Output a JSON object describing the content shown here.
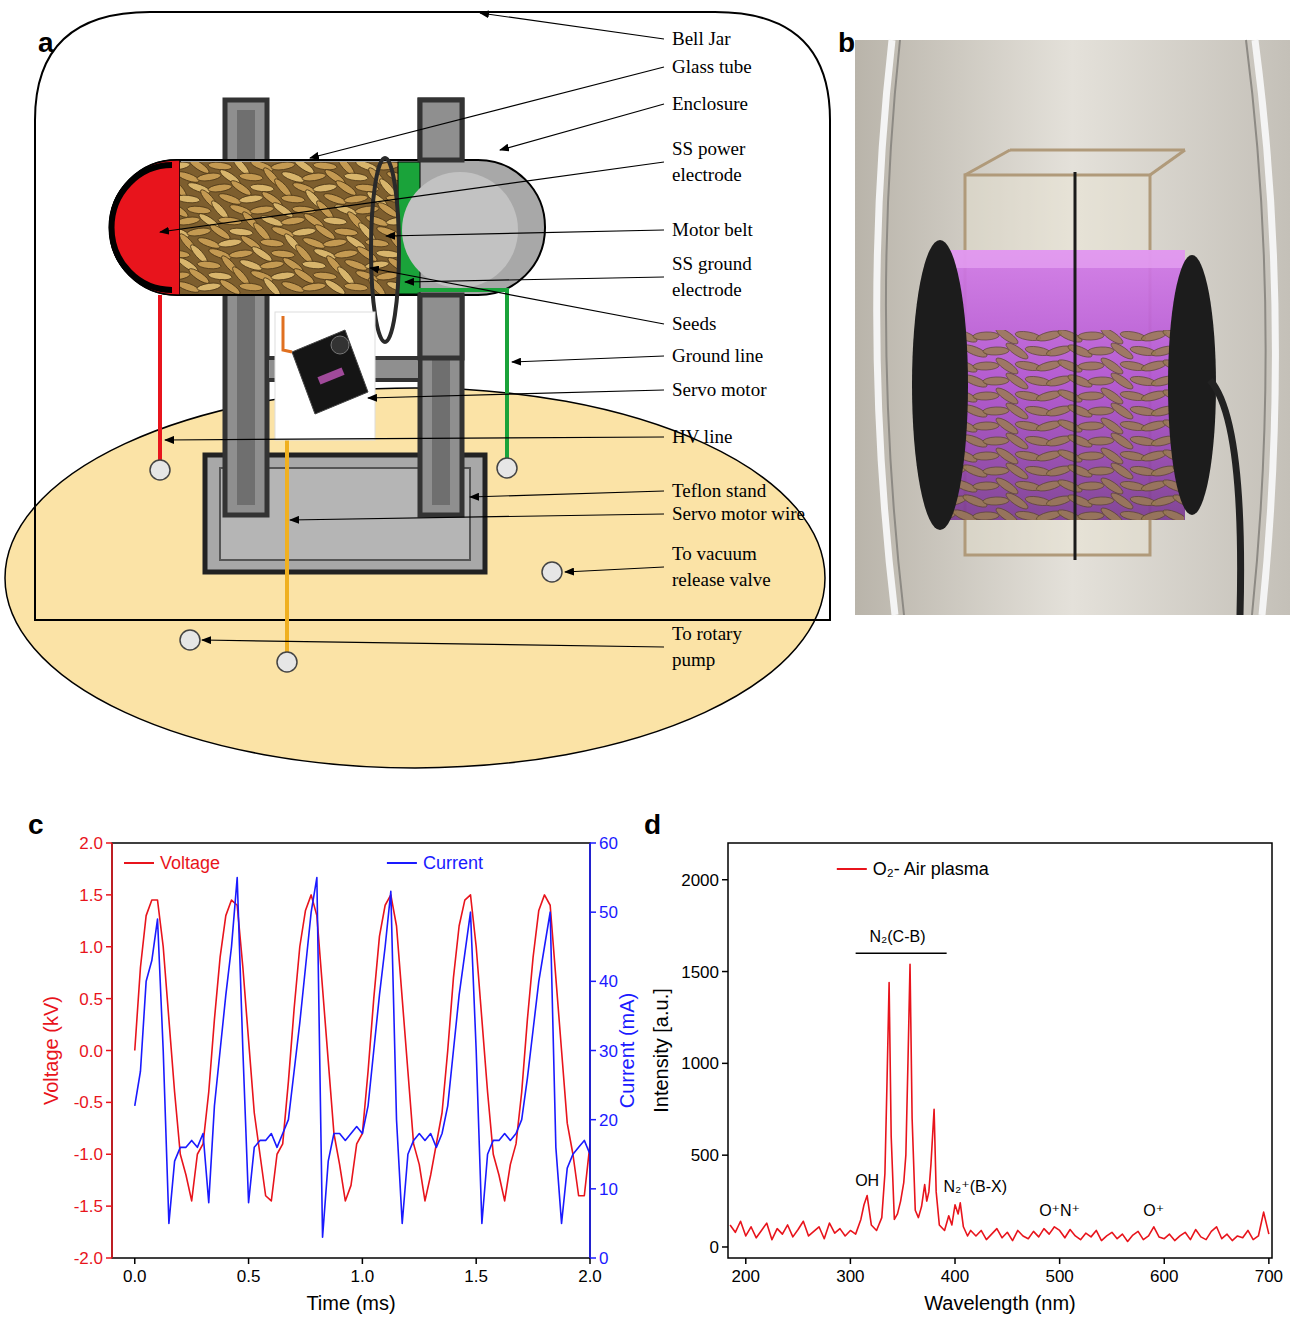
{
  "panel_labels": [
    "a",
    "b",
    "c",
    "d"
  ],
  "diagram": {
    "labels": [
      {
        "lines": [
          "Bell Jar"
        ]
      },
      {
        "lines": [
          "Glass tube"
        ]
      },
      {
        "lines": [
          "Enclosure"
        ]
      },
      {
        "lines": [
          "SS power",
          "electrode"
        ]
      },
      {
        "lines": [
          "Motor belt"
        ]
      },
      {
        "lines": [
          "SS ground",
          "electrode"
        ]
      },
      {
        "lines": [
          "Seeds"
        ]
      },
      {
        "lines": [
          "Ground line"
        ]
      },
      {
        "lines": [
          "Servo motor"
        ]
      },
      {
        "lines": [
          "HV line"
        ]
      },
      {
        "lines": [
          "Teflon stand"
        ]
      },
      {
        "lines": [
          "Servo motor wire"
        ]
      },
      {
        "lines": [
          "To vacuum",
          "release valve"
        ]
      },
      {
        "lines": [
          "To rotary",
          "pump"
        ]
      }
    ]
  },
  "chart_data": [
    {
      "type": "line",
      "x_label": "Time (ms)",
      "y_label": "Voltage (kV)",
      "y2_label": "Current (mA)",
      "x": [
        0,
        0.025,
        0.05,
        0.075,
        0.1,
        0.125,
        0.15,
        0.175,
        0.2,
        0.225,
        0.25,
        0.275,
        0.3,
        0.325,
        0.35,
        0.375,
        0.4,
        0.425,
        0.45,
        0.475,
        0.5,
        0.525,
        0.55,
        0.575,
        0.6,
        0.625,
        0.65,
        0.675,
        0.7,
        0.725,
        0.75,
        0.775,
        0.8,
        0.825,
        0.85,
        0.875,
        0.9,
        0.925,
        0.95,
        0.975,
        1,
        1.025,
        1.05,
        1.075,
        1.1,
        1.125,
        1.15,
        1.175,
        1.2,
        1.225,
        1.25,
        1.275,
        1.3,
        1.325,
        1.35,
        1.375,
        1.4,
        1.425,
        1.45,
        1.475,
        1.5,
        1.525,
        1.55,
        1.575,
        1.6,
        1.625,
        1.65,
        1.675,
        1.7,
        1.725,
        1.75,
        1.775,
        1.8,
        1.825,
        1.85,
        1.875,
        1.9,
        1.925,
        1.95,
        1.975,
        2
      ],
      "series": [
        {
          "name": "Voltage",
          "color": "#e8141c",
          "values": [
            0,
            0.8,
            1.3,
            1.45,
            1.45,
            1.0,
            0.3,
            -0.4,
            -1.0,
            -1.2,
            -1.45,
            -1.0,
            -0.9,
            -0.4,
            0.3,
            0.9,
            1.3,
            1.45,
            1.4,
            0.8,
            0.1,
            -0.6,
            -1.0,
            -1.4,
            -1.45,
            -1.0,
            -0.9,
            -0.3,
            0.4,
            1.0,
            1.35,
            1.5,
            1.3,
            0.6,
            -0.1,
            -0.8,
            -1.1,
            -1.45,
            -1.3,
            -0.9,
            -0.8,
            -0.2,
            0.5,
            1.1,
            1.4,
            1.5,
            1.2,
            0.5,
            -0.2,
            -0.9,
            -1.1,
            -1.45,
            -1.2,
            -0.9,
            -0.6,
            0.0,
            0.7,
            1.2,
            1.45,
            1.5,
            1.0,
            0.3,
            -0.4,
            -1.0,
            -1.2,
            -1.45,
            -1.1,
            -0.9,
            -0.4,
            0.3,
            0.9,
            1.35,
            1.5,
            1.4,
            0.7,
            0.0,
            -0.7,
            -1.0,
            -1.4,
            -1.4,
            -0.9
          ]
        },
        {
          "name": "Current",
          "color": "#1a1aff",
          "axis": "y2",
          "values": [
            22,
            27,
            40,
            43,
            49,
            30,
            5,
            14,
            16,
            16,
            17,
            16,
            18,
            8,
            22,
            30,
            38,
            45,
            55,
            30,
            8,
            16,
            17,
            17,
            18,
            16,
            18,
            20,
            27,
            34,
            42,
            50,
            55,
            3,
            14,
            18,
            18,
            17,
            18,
            19,
            18,
            22,
            30,
            38,
            45,
            53,
            20,
            5,
            15,
            17,
            18,
            17,
            18,
            16,
            18,
            22,
            30,
            38,
            44,
            50,
            30,
            5,
            15,
            17,
            17,
            18,
            17,
            18,
            20,
            26,
            33,
            40,
            45,
            50,
            16,
            5,
            13,
            15,
            16,
            17,
            15
          ]
        }
      ],
      "xlim": [
        -0.1,
        2.0
      ],
      "xticks": [
        {
          "value": 0,
          "label": "0.0"
        },
        {
          "value": 0.5,
          "label": "0.5"
        },
        {
          "value": 1,
          "label": "1.0"
        },
        {
          "value": 1.5,
          "label": "1.5"
        },
        {
          "value": 2,
          "label": "2.0"
        }
      ],
      "ylim": [
        -2,
        2
      ],
      "yticks": [
        {
          "value": -2,
          "label": "-2.0"
        },
        {
          "value": -1.5,
          "label": "-1.5"
        },
        {
          "value": -1,
          "label": "-1.0"
        },
        {
          "value": -0.5,
          "label": "-0.5"
        },
        {
          "value": 0,
          "label": "0.0"
        },
        {
          "value": 0.5,
          "label": "0.5"
        },
        {
          "value": 1,
          "label": "1.0"
        },
        {
          "value": 1.5,
          "label": "1.5"
        },
        {
          "value": 2,
          "label": "2.0"
        }
      ],
      "y2lim": [
        0,
        60
      ],
      "y2ticks": [
        0,
        10,
        20,
        30,
        40,
        50,
        60
      ],
      "legend": "top",
      "grid": false
    },
    {
      "type": "line",
      "x_label": "Wavelength (nm)",
      "y_label": "Intensity [a.u.]",
      "x": [
        185,
        190,
        195,
        200,
        205,
        210,
        215,
        220,
        225,
        230,
        235,
        240,
        245,
        250,
        255,
        260,
        265,
        270,
        275,
        280,
        285,
        290,
        295,
        300,
        305,
        310,
        313,
        316,
        320,
        325,
        330,
        333,
        335,
        337,
        339,
        342,
        345,
        348,
        351,
        353,
        355,
        357,
        359,
        362,
        365,
        368,
        371,
        373,
        375,
        377,
        380,
        382,
        385,
        390,
        394,
        397,
        400,
        403,
        405,
        408,
        412,
        415,
        420,
        425,
        430,
        435,
        440,
        445,
        450,
        455,
        460,
        465,
        470,
        475,
        480,
        485,
        490,
        495,
        500,
        505,
        510,
        515,
        520,
        525,
        530,
        535,
        540,
        545,
        550,
        555,
        560,
        565,
        570,
        575,
        580,
        585,
        590,
        595,
        600,
        605,
        610,
        615,
        620,
        625,
        630,
        635,
        640,
        645,
        650,
        655,
        660,
        665,
        670,
        675,
        680,
        685,
        690,
        695,
        700
      ],
      "series": [
        {
          "name": "O₂- Air plasma",
          "color": "#e8141c",
          "values": [
            120,
            80,
            140,
            60,
            110,
            50,
            90,
            130,
            40,
            100,
            70,
            120,
            55,
            95,
            140,
            60,
            85,
            110,
            45,
            130,
            75,
            100,
            60,
            90,
            70,
            150,
            230,
            280,
            120,
            90,
            160,
            400,
            900,
            1440,
            600,
            150,
            180,
            250,
            350,
            500,
            1000,
            1540,
            700,
            200,
            160,
            220,
            340,
            250,
            300,
            450,
            750,
            300,
            120,
            90,
            170,
            120,
            230,
            180,
            240,
            110,
            60,
            90,
            60,
            90,
            40,
            70,
            100,
            50,
            80,
            35,
            90,
            60,
            45,
            85,
            55,
            100,
            70,
            110,
            90,
            50,
            95,
            60,
            40,
            75,
            55,
            90,
            35,
            60,
            80,
            45,
            70,
            30,
            65,
            85,
            40,
            60,
            110,
            55,
            45,
            70,
            35,
            60,
            80,
            40,
            95,
            55,
            40,
            85,
            110,
            45,
            70,
            35,
            60,
            50,
            90,
            40,
            60,
            190,
            70
          ]
        }
      ],
      "xlim": [
        183,
        703
      ],
      "xticks": [
        200,
        300,
        400,
        500,
        600,
        700
      ],
      "ylim": [
        -60,
        2200
      ],
      "yticks": [
        0,
        500,
        1000,
        1500,
        2000
      ],
      "annotations": [
        "N₂(C-B)",
        "OH",
        "N₂⁺(B-X)",
        "O⁺N⁺",
        "O⁺"
      ],
      "legend": "upper left",
      "grid": false
    }
  ]
}
